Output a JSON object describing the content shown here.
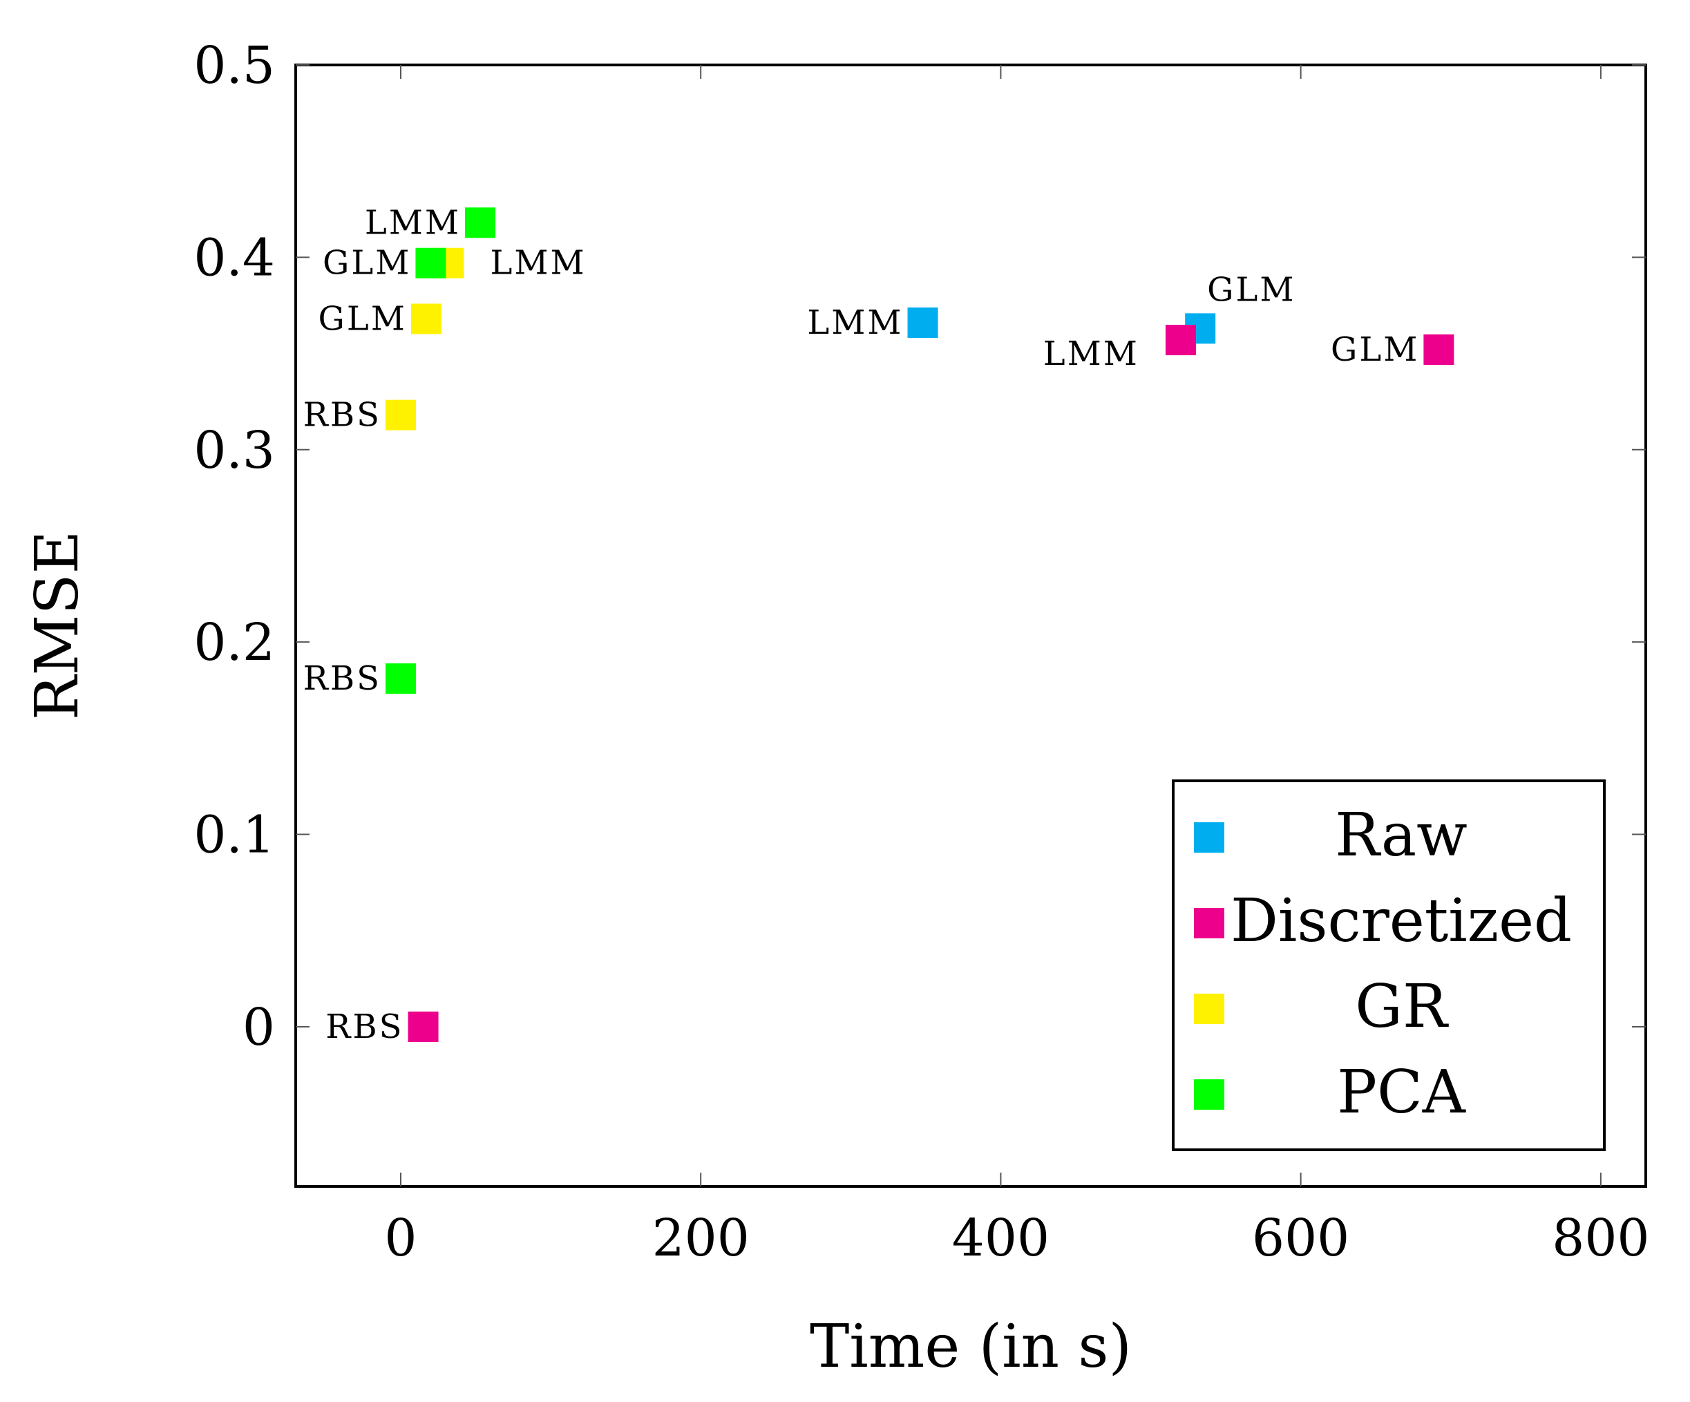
{
  "chart_data": {
    "type": "scatter",
    "xlabel": "Time (in s)",
    "ylabel": "RMSE",
    "xlim": [
      -70,
      830
    ],
    "ylim": [
      -0.083,
      0.5
    ],
    "xticks": [
      0,
      200,
      400,
      600,
      800
    ],
    "xtick_labels": [
      "0",
      "200",
      "400",
      "600",
      "800"
    ],
    "yticks": [
      0,
      0.1,
      0.2,
      0.3,
      0.4,
      0.5
    ],
    "ytick_labels": [
      "0",
      "0.1",
      "0.2",
      "0.3",
      "0.4",
      "0.5"
    ],
    "grid": false,
    "legend_position": "bottom-right",
    "series": [
      {
        "name": "Raw",
        "color": "#00aeef",
        "marker": "square",
        "points": [
          {
            "x": 348,
            "y": 0.366,
            "label": "LMM",
            "label_side": "left"
          },
          {
            "x": 533,
            "y": 0.363,
            "label": "GLM",
            "label_side": "above-right"
          }
        ]
      },
      {
        "name": "Discretized",
        "color": "#ec008c",
        "marker": "square",
        "points": [
          {
            "x": 15,
            "y": 0.0,
            "label": "RBS",
            "label_side": "left"
          },
          {
            "x": 520,
            "y": 0.357,
            "label": "LMM",
            "label_side": "left-below"
          },
          {
            "x": 692,
            "y": 0.352,
            "label": "GLM",
            "label_side": "left"
          }
        ]
      },
      {
        "name": "GR",
        "color": "#fff200",
        "marker": "square",
        "points": [
          {
            "x": 0,
            "y": 0.318,
            "label": "RBS",
            "label_side": "left"
          },
          {
            "x": 17,
            "y": 0.368,
            "label": "GLM",
            "label_side": "left"
          },
          {
            "x": 32,
            "y": 0.397,
            "label": "LMM",
            "label_side": "right"
          }
        ]
      },
      {
        "name": "PCA",
        "color": "#00ff00",
        "marker": "square",
        "points": [
          {
            "x": 0,
            "y": 0.181,
            "label": "RBS",
            "label_side": "left"
          },
          {
            "x": 20,
            "y": 0.397,
            "label": "GLM",
            "label_side": "left"
          },
          {
            "x": 53,
            "y": 0.418,
            "label": "LMM",
            "label_side": "left"
          }
        ]
      }
    ]
  }
}
